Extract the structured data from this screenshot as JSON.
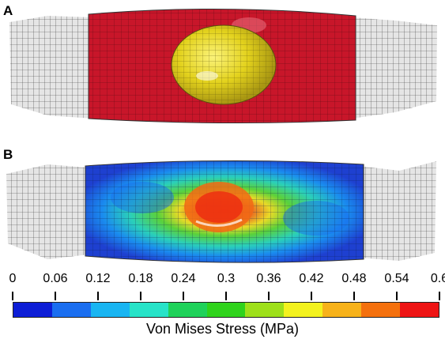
{
  "panels": {
    "a": {
      "label": "A"
    },
    "b": {
      "label": "B"
    }
  },
  "legend": {
    "title": "Von Mises Stress (MPa)",
    "ticks": [
      "0",
      "0.06",
      "0.12",
      "0.18",
      "0.24",
      "0.3",
      "0.36",
      "0.42",
      "0.48",
      "0.54",
      "0.6"
    ],
    "colors": [
      "#0d1ed6",
      "#1a6ef0",
      "#19b5f2",
      "#27e3c8",
      "#1fd25a",
      "#2fd31c",
      "#9ee01a",
      "#f3f21e",
      "#f7b21a",
      "#f4700d",
      "#ee1414"
    ]
  },
  "colors": {
    "pad": "#c8162a",
    "ball": "#e9de25",
    "mesh_grey": "#e3e3e3",
    "stress_low": "#1e4fd8",
    "stress_mid": "#2bd6b8",
    "stress_high": "#ee2a10"
  }
}
